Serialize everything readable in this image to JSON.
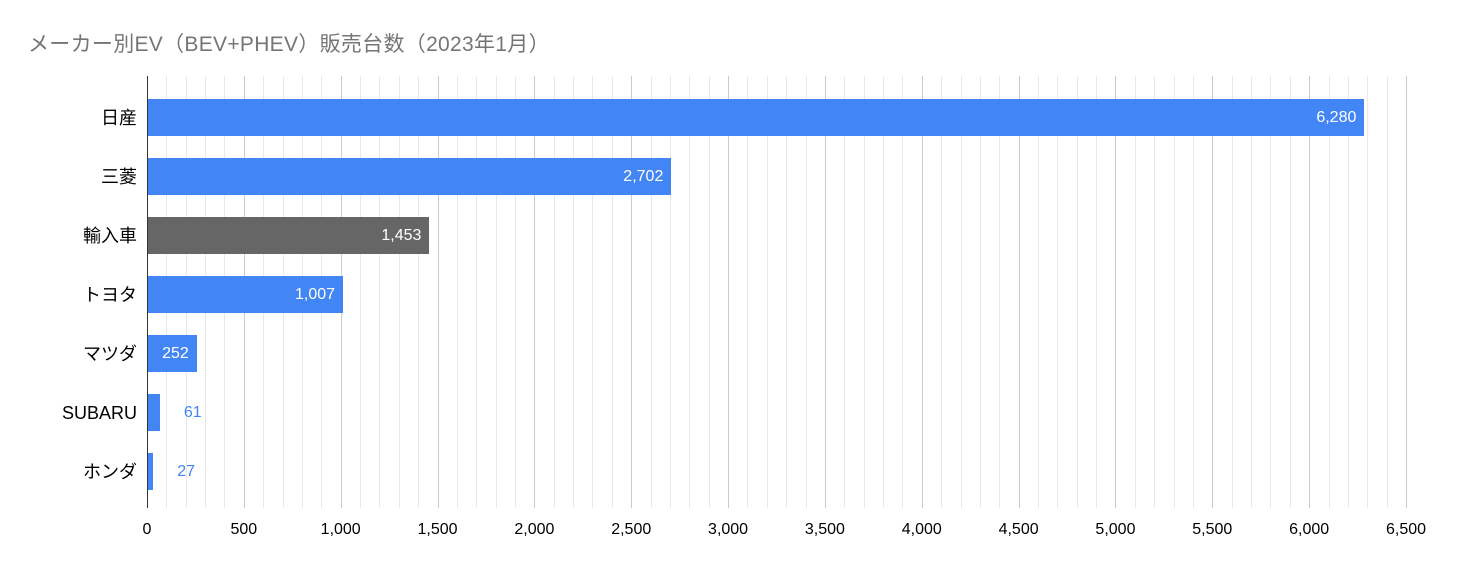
{
  "title": "メーカー別EV（BEV+PHEV）販売台数（2023年1月）",
  "colors": {
    "title_text": "#757575",
    "bar_blue": "#4285f4",
    "bar_gray": "#666666",
    "value_label_inside": "#ffffff",
    "value_label_outside": "#4285f4",
    "category_text": "#000000",
    "tick_text": "#000000",
    "axis_line": "#333333",
    "gridline_major": "#cccccc",
    "gridline_minor": "#e8e8e8",
    "background": "#ffffff"
  },
  "chart_data": {
    "type": "bar",
    "orientation": "horizontal",
    "title": "メーカー別EV（BEV+PHEV）販売台数（2023年1月）",
    "categories": [
      "日産",
      "三菱",
      "輸入車",
      "トヨタ",
      "マツダ",
      "SUBARU",
      "ホンダ"
    ],
    "values": [
      6280,
      2702,
      1453,
      1007,
      252,
      61,
      27
    ],
    "value_labels": [
      "6,280",
      "2,702",
      "1,453",
      "1,007",
      "252",
      "61",
      "27"
    ],
    "bar_colors": [
      "#4285f4",
      "#4285f4",
      "#666666",
      "#4285f4",
      "#4285f4",
      "#4285f4",
      "#4285f4"
    ],
    "xlim": [
      0,
      6500
    ],
    "x_ticks": [
      0,
      500,
      1000,
      1500,
      2000,
      2500,
      3000,
      3500,
      4000,
      4500,
      5000,
      5500,
      6000,
      6500
    ],
    "x_tick_labels": [
      "0",
      "500",
      "1,000",
      "1,500",
      "2,000",
      "2,500",
      "3,000",
      "3,500",
      "4,000",
      "4,500",
      "5,000",
      "5,500",
      "6,000",
      "6,500"
    ],
    "minor_grid_step": 100,
    "major_grid_step": 500,
    "grid": true,
    "legend": "none",
    "xlabel": "",
    "ylabel": ""
  }
}
